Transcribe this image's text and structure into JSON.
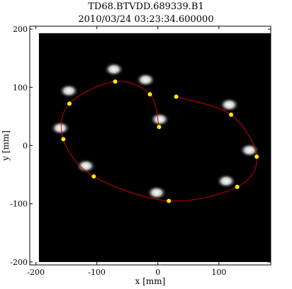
{
  "chart_data": {
    "type": "scatter",
    "title": "TD68.BTVDD.689339.B1",
    "subtitle": "2010/03/24 03:23:34.600000",
    "xlabel": "x [mm]",
    "ylabel": "y [mm]",
    "xlim": [
      -210,
      185
    ],
    "ylim": [
      -205,
      205
    ],
    "xticks": [
      -200,
      -100,
      0,
      100
    ],
    "yticks": [
      -200,
      -100,
      0,
      100,
      200
    ],
    "image_extent": {
      "x": [
        -195,
        185
      ],
      "y": [
        -200,
        193
      ]
    },
    "background_color": "#000000",
    "spiral_color": "#cc0000",
    "point_color": "#ffee00",
    "spots": [
      {
        "x": 3,
        "y": 45
      },
      {
        "x": -20,
        "y": 113
      },
      {
        "x": -72,
        "y": 131
      },
      {
        "x": -146,
        "y": 94
      },
      {
        "x": -160,
        "y": 30
      },
      {
        "x": -118,
        "y": -35
      },
      {
        "x": -2,
        "y": -81
      },
      {
        "x": 112,
        "y": -61
      },
      {
        "x": 150,
        "y": -8
      },
      {
        "x": 117,
        "y": 70
      }
    ],
    "spiral_points": [
      {
        "x": 2,
        "y": 32
      },
      {
        "x": -13,
        "y": 88
      },
      {
        "x": -70,
        "y": 110
      },
      {
        "x": -145,
        "y": 72
      },
      {
        "x": -155,
        "y": 11
      },
      {
        "x": -105,
        "y": -53
      },
      {
        "x": 18,
        "y": -95
      },
      {
        "x": 130,
        "y": -71
      },
      {
        "x": 162,
        "y": -19
      },
      {
        "x": 120,
        "y": 53
      },
      {
        "x": 30,
        "y": 84
      }
    ]
  }
}
